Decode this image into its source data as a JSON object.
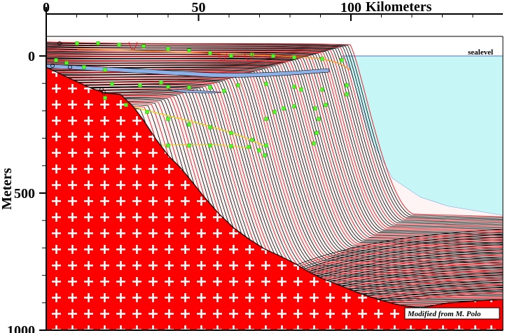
{
  "figure": {
    "x_axis": {
      "ticks": [
        "0",
        "50",
        "100"
      ],
      "tick_values_km": [
        0,
        50,
        100
      ],
      "title": "Kilometers"
    },
    "y_axis": {
      "ticks": [
        "0",
        "500",
        "1000"
      ],
      "tick_values_m": [
        0,
        500,
        1000
      ],
      "title": "Meters"
    },
    "sealevel_label": "sealevel",
    "credit": "Modified from M. Polo",
    "colors": {
      "basement": "#ff0000",
      "basement_cross": "#ffffff",
      "sea": "#c6f6f6",
      "line_black": "#000000",
      "line_red": "#e8141b",
      "markers": "#4cff1f",
      "sand": "#ff9b1a",
      "shale_blue": "#8ab1e8"
    }
  }
}
